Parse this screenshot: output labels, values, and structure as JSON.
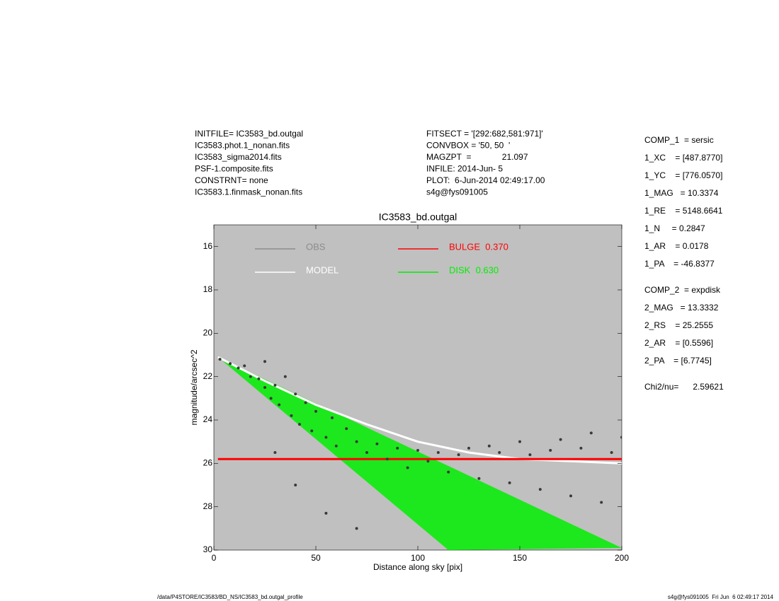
{
  "header": {
    "left": [
      "INITFILE= IC3583_bd.outgal",
      "IC3583.phot.1_nonan.fits",
      "IC3583_sigma2014.fits",
      "PSF-1.composite.fits",
      "CONSTRNT= none",
      "IC3583.1.finmask_nonan.fits"
    ],
    "middle": [
      "FITSECT = '[292:682,581:971]'",
      "CONVBOX = '50, 50  '",
      "MAGZPT  =             21.097",
      "INFILE: 2014-Jun- 5",
      "PLOT:  6-Jun-2014 02:49:17.00",
      "s4g@fys091005"
    ]
  },
  "params": [
    [
      "COMP_1  = sersic",
      "1_XC    = [487.8770]",
      "1_YC    = [776.0570]",
      "1_MAG   = 10.3374",
      "1_RE    = 5148.6641",
      "1_N     = 0.2847",
      "1_AR    = 0.0178",
      "1_PA    = -46.8377"
    ],
    [
      "COMP_2  = expdisk",
      "2_MAG   = 13.3332",
      "2_RS    = 25.2555",
      "2_AR    = [0.5596]",
      "2_PA    = [6.7745]"
    ],
    [
      "Chi2/nu=      2.59621"
    ]
  ],
  "footer": {
    "left": "/data/P4STORE/IC3583/BD_NS/IC3583_bd.outgal_profile",
    "right": "s4g@fys091005  Fri Jun  6 02:49:17 2014"
  },
  "chart_data": {
    "type": "scatter",
    "title": "IC3583_bd.outgal",
    "x_label": "Distance along sky [pix]",
    "y_label": "magnitude/arcsec^2",
    "xlim": [
      0,
      200
    ],
    "xticks": [
      0,
      50,
      100,
      150,
      200
    ],
    "ylim": [
      30,
      15
    ],
    "yticks": [
      16,
      18,
      20,
      22,
      24,
      26,
      28,
      30
    ],
    "background": "#c0c0c0",
    "legend": "upper left",
    "series": [
      {
        "name": "OBS",
        "type": "scatter",
        "color": "#8c8c8c",
        "marker_color": "#3a3a3a",
        "x": [
          3,
          8,
          12,
          15,
          18,
          22,
          25,
          25,
          28,
          30,
          32,
          35,
          38,
          40,
          42,
          45,
          48,
          50,
          55,
          58,
          60,
          65,
          70,
          75,
          80,
          85,
          90,
          95,
          100,
          105,
          110,
          115,
          120,
          125,
          130,
          135,
          140,
          145,
          150,
          155,
          160,
          165,
          170,
          175,
          180,
          185,
          190,
          195,
          200,
          40,
          55,
          70,
          30
        ],
        "values": [
          21.2,
          21.4,
          21.6,
          21.5,
          22.0,
          22.1,
          21.3,
          22.5,
          23.0,
          22.4,
          23.3,
          22.0,
          23.8,
          22.8,
          24.2,
          23.2,
          24.5,
          23.6,
          24.8,
          23.9,
          25.2,
          24.4,
          25.0,
          25.5,
          25.1,
          25.8,
          25.3,
          26.2,
          25.4,
          25.9,
          25.5,
          26.4,
          25.6,
          25.3,
          26.7,
          25.2,
          25.5,
          26.9,
          25.0,
          25.6,
          27.2,
          25.4,
          24.9,
          27.5,
          25.3,
          24.6,
          27.8,
          25.5,
          24.8,
          27.0,
          28.3,
          29.0,
          25.5
        ]
      },
      {
        "name": "MODEL",
        "type": "line",
        "color": "#ffffff",
        "x": [
          2,
          25,
          50,
          75,
          100,
          125,
          150,
          175,
          200
        ],
        "values": [
          21.1,
          22.2,
          23.3,
          24.2,
          25.0,
          25.5,
          25.8,
          25.9,
          26.0
        ]
      },
      {
        "name": "BULGE  0.370",
        "type": "line",
        "color": "#ff0000",
        "x": [
          2,
          200
        ],
        "values": [
          25.8,
          25.8
        ]
      },
      {
        "name": "DISK  0.630",
        "type": "band",
        "color": "#00ee00",
        "x": [
          2,
          200
        ],
        "values": [
          21.1,
          29.9
        ],
        "lower": {
          "x": [
            2,
            115
          ],
          "values": [
            21.1,
            30.0
          ]
        }
      }
    ]
  }
}
